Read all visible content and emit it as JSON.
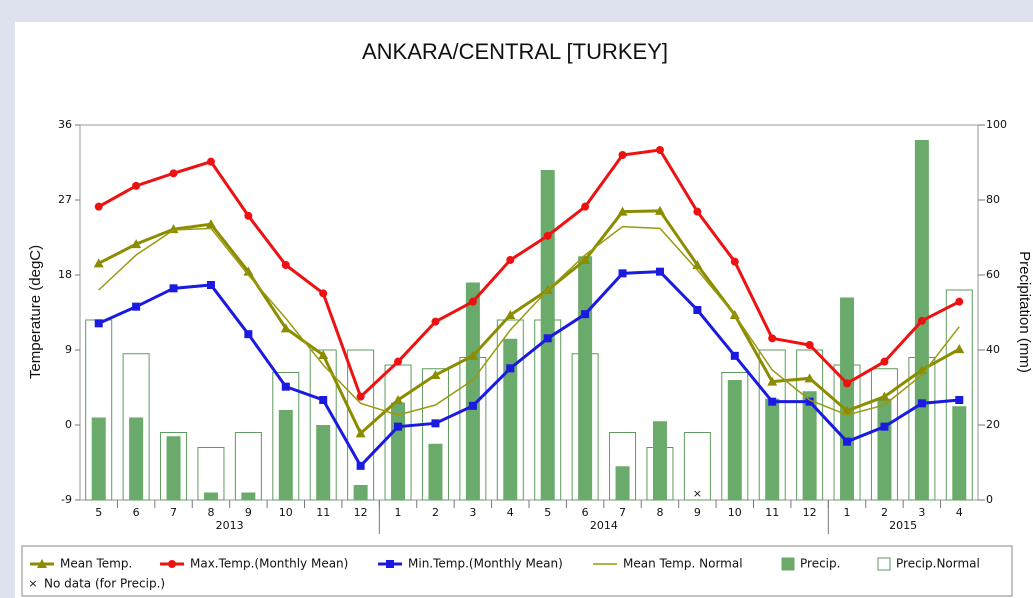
{
  "chart_data": {
    "type": "combo",
    "title": "ANKARA/CENTRAL [TURKEY]",
    "ylabel": "Temperature (degC)",
    "y2label": "Precipitation (mm)",
    "categories": [
      "5",
      "6",
      "7",
      "8",
      "9",
      "10",
      "11",
      "12",
      "1",
      "2",
      "3",
      "4",
      "5",
      "6",
      "7",
      "8",
      "9",
      "10",
      "11",
      "12",
      "1",
      "2",
      "3",
      "4"
    ],
    "groups": [
      {
        "label": "2013",
        "count": 8
      },
      {
        "label": "2014",
        "count": 12
      },
      {
        "label": "2015",
        "count": 4
      }
    ],
    "ylim": [
      -9,
      36
    ],
    "yticks": [
      -9,
      0,
      9,
      18,
      27,
      36
    ],
    "y2lim": [
      0,
      100
    ],
    "y2ticks": [
      0,
      20,
      40,
      60,
      80,
      100
    ],
    "series": [
      {
        "name": "Mean Temp.",
        "kind": "line",
        "marker": "triangle",
        "color": "#8c8c00",
        "values": [
          19.4,
          21.7,
          23.5,
          24.1,
          18.4,
          11.6,
          8.4,
          -1.0,
          3.0,
          6.0,
          8.3,
          13.2,
          16.2,
          19.8,
          25.6,
          25.7,
          19.2,
          13.2,
          5.2,
          5.6,
          1.7,
          3.4,
          6.6,
          9.1
        ]
      },
      {
        "name": "Max.Temp.(Monthly Mean)",
        "kind": "line",
        "marker": "circle",
        "color": "#ee1111",
        "values": [
          26.2,
          28.7,
          30.2,
          31.6,
          25.1,
          19.2,
          15.8,
          3.4,
          7.6,
          12.4,
          14.8,
          19.8,
          22.7,
          26.2,
          32.4,
          33.0,
          25.6,
          19.6,
          10.4,
          9.6,
          5.0,
          7.6,
          12.5,
          14.8
        ]
      },
      {
        "name": "Min.Temp.(Monthly Mean)",
        "kind": "line",
        "marker": "square",
        "color": "#1a1ae0",
        "values": [
          12.2,
          14.2,
          16.4,
          16.8,
          10.9,
          4.6,
          3.0,
          -4.9,
          -0.2,
          0.2,
          2.3,
          6.8,
          10.4,
          13.3,
          18.2,
          18.4,
          13.8,
          8.3,
          2.8,
          2.8,
          -2.0,
          -0.2,
          2.6,
          3.0
        ]
      },
      {
        "name": "Mean Temp. Normal",
        "kind": "line",
        "marker": "none",
        "color": "#9a9a10",
        "values": [
          16.2,
          20.4,
          23.4,
          23.6,
          18.0,
          12.8,
          7.2,
          2.6,
          1.2,
          2.4,
          5.4,
          11.4,
          16.2,
          20.4,
          23.8,
          23.6,
          18.6,
          13.2,
          6.6,
          3.0,
          1.2,
          2.4,
          6.0,
          11.8
        ]
      },
      {
        "name": "Precip.",
        "kind": "bar",
        "axis": "y2",
        "color": "#6aaa6a",
        "values": [
          22,
          22,
          17,
          2,
          2,
          24,
          20,
          4,
          26,
          15,
          58,
          43,
          88,
          65,
          9,
          21,
          null,
          32,
          27,
          29,
          54,
          27,
          96,
          25
        ]
      },
      {
        "name": "Precip.Normal",
        "kind": "hollow-bar",
        "axis": "y2",
        "color": "#5f9a5f",
        "values": [
          48,
          39,
          18,
          14,
          18,
          34,
          40,
          40,
          36,
          35,
          38,
          48,
          48,
          39,
          18,
          14,
          18,
          34,
          40,
          40,
          36,
          35,
          38,
          56
        ]
      }
    ],
    "no_data_label": "No data (for Precip.)"
  }
}
